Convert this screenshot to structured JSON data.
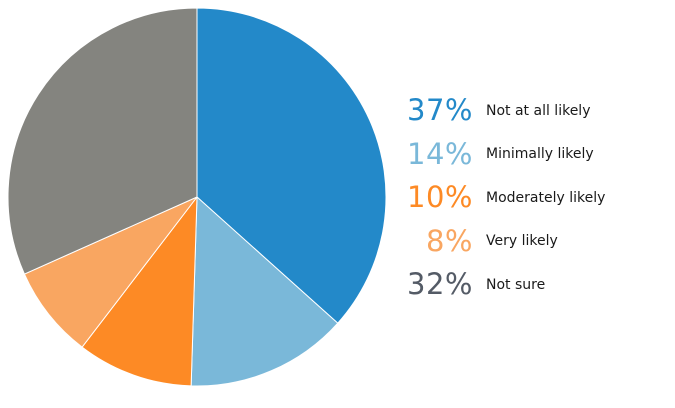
{
  "chart_data": {
    "type": "pie",
    "title": "",
    "start_angle": "12 o'clock",
    "direction": "clockwise",
    "legend_position": "right",
    "slices": [
      {
        "label": "Not at all likely",
        "value": 37,
        "display": "37%",
        "color": "#2389c9"
      },
      {
        "label": "Minimally likely",
        "value": 14,
        "display": "14%",
        "color": "#7ab8d9"
      },
      {
        "label": "Moderately likely",
        "value": 10,
        "display": "10%",
        "color": "#fd8a25"
      },
      {
        "label": "Very likely",
        "value": 8,
        "display": "8%",
        "color": "#f9a661"
      },
      {
        "label": "Not sure",
        "value": 32,
        "display": "32%",
        "color": "#84847f"
      }
    ]
  },
  "legend_percent_colors": [
    "#2389c9",
    "#7ab8d9",
    "#fd8a25",
    "#f9a661",
    "#545b66"
  ]
}
